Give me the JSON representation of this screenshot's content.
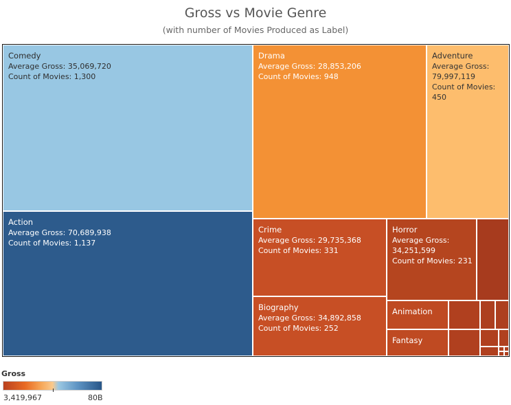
{
  "chart_data": {
    "type": "treemap",
    "title": "Gross vs Movie Genre",
    "subtitle": "(with number of Movies Produced as Label)",
    "size_measure": "Count of Movies",
    "color_measure": "Average Gross",
    "metric_labels": {
      "gross": "Average Gross:",
      "count": "Count of Movies:"
    },
    "tiles": [
      {
        "name": "Comedy",
        "gross": "35,069,720",
        "count": "1,300",
        "color": "#98c7e3",
        "text": "#2e2e2e"
      },
      {
        "name": "Action",
        "gross": "70,689,938",
        "count": "1,137",
        "color": "#2d5b8c",
        "text": "#ffffff"
      },
      {
        "name": "Drama",
        "gross": "28,853,206",
        "count": "948",
        "color": "#f39135",
        "text": "#ffffff"
      },
      {
        "name": "Adventure",
        "gross": "79,997,119",
        "count": "450",
        "color": "#fdbd6d",
        "text": "#333333"
      },
      {
        "name": "Crime",
        "gross": "29,735,368",
        "count": "331",
        "color": "#c74f25",
        "text": "#ffffff"
      },
      {
        "name": "Biography",
        "gross": "34,892,858",
        "count": "252",
        "color": "#c74f25",
        "text": "#ffffff"
      },
      {
        "name": "Horror",
        "gross": "34,251,599",
        "count": "231",
        "color": "#b5451f",
        "text": "#ffffff"
      },
      {
        "name": "Animation",
        "color": "#bf4a22",
        "text": "#ffffff"
      },
      {
        "name": "Fantasy",
        "color": "#bf4a22",
        "text": "#ffffff"
      },
      {
        "name": "",
        "color": "#a73b1e"
      },
      {
        "name": "",
        "color": "#b0401f"
      },
      {
        "name": "",
        "color": "#b0401f"
      },
      {
        "name": "",
        "color": "#ad3f1f"
      },
      {
        "name": "",
        "color": "#ad3f1f"
      },
      {
        "name": "",
        "color": "#b0401f"
      },
      {
        "name": "",
        "color": "#b0401f"
      },
      {
        "name": "",
        "color": "#b0401f"
      },
      {
        "name": "",
        "color": "#b0401f"
      },
      {
        "name": "",
        "color": "#b0401f"
      },
      {
        "name": "",
        "color": "#b0401f"
      },
      {
        "name": "",
        "color": "#b0401f"
      },
      {
        "name": "",
        "color": "#b0401f"
      }
    ],
    "legend": {
      "title": "Gross",
      "min_label": "3,419,967",
      "max_label": "80B",
      "gradient_colors": [
        "#b9411f",
        "#e86a22",
        "#fac98b",
        "#9cc8e2",
        "#285688"
      ]
    }
  }
}
